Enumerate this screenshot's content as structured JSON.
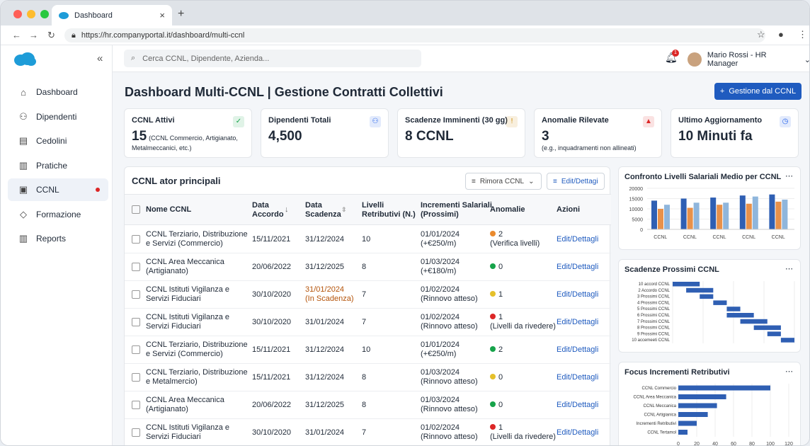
{
  "browser": {
    "tab_title": "Dashboard",
    "url": "https://hr.companyportal.it/dashboard/multi-ccnl"
  },
  "sidebar": {
    "items": [
      {
        "label": "Dashboard",
        "icon": "home-icon"
      },
      {
        "label": "Dipendenti",
        "icon": "people-icon"
      },
      {
        "label": "Cedolini",
        "icon": "document-icon"
      },
      {
        "label": "Pratiche",
        "icon": "file-icon"
      },
      {
        "label": "CCNL",
        "icon": "contract-icon"
      },
      {
        "label": "Formazione",
        "icon": "graduation-icon"
      },
      {
        "label": "Reports",
        "icon": "bar-chart-icon"
      }
    ]
  },
  "topbar": {
    "search_placeholder": "Cerca CCNL, Dipendente, Azienda...",
    "notifications": "1",
    "user": "Mario Rossi - HR Manager"
  },
  "page": {
    "title": "Dashboard Multi-CCNL | Gestione Contratti Collettivi",
    "action": "Gestione dal CCNL"
  },
  "kpis": [
    {
      "label": "CCNL Attivi",
      "value": "15",
      "sub": "(CCNL Commercio, Artigianato,",
      "sub2": "Metalmeccanici, etc.)",
      "icon": "check-icon",
      "color": "#16a34a"
    },
    {
      "label": "Dipendenti Totali",
      "value": "4,500",
      "sub": "",
      "sub2": "",
      "icon": "people-icon",
      "color": "#2563eb"
    },
    {
      "label": "Scadenze Imminenti (30 gg)",
      "value": "8 CCNL",
      "sub": "",
      "sub2": "",
      "icon": "exclamation-icon",
      "color": "#ca8a04"
    },
    {
      "label": "Anomalie Rilevate",
      "value": "3",
      "sub": "",
      "sub2": "(e.g., inquadramenti non allineati)",
      "icon": "warning-icon",
      "color": "#dc2626"
    },
    {
      "label": "Ultimo Aggiornamento",
      "value": "10 Minuti fa",
      "sub": "",
      "sub2": "",
      "icon": "clock-icon",
      "color": "#2563eb"
    }
  ],
  "table": {
    "title": "CCNL ator principali",
    "filter": "Rimora CCNL",
    "edit": "Edit/Dettagi",
    "headers": [
      "Nome CCNL",
      "Data Accordo",
      "Data Scadenza",
      "Livelli Retributivi (N.)",
      "Incrementi Salariali (Prossimi)",
      "Anomalie",
      "Azioni"
    ],
    "header_lines": [
      [
        "Nome CCNL"
      ],
      [
        "Data",
        "Accordo"
      ],
      [
        "Data",
        "Scadenza"
      ],
      [
        "Livelli",
        "Retributivi (N.)"
      ],
      [
        "Incrementi Salariali",
        "(Prossimi)"
      ],
      [
        "Anomalie"
      ],
      [
        "Azioni"
      ]
    ],
    "rows": [
      {
        "name": [
          "CCNL Terziario, Distribuzione",
          "e Servizi (Commercio)"
        ],
        "accordo": "15/11/2021",
        "scadenza": [
          "31/12/2024"
        ],
        "livelli": "10",
        "inc": [
          "01/01/2024",
          "(+€250/m)"
        ],
        "anom": [
          "2",
          "(Verifica livelli)"
        ],
        "dot": "#ea8a2e",
        "azioni": "Edit/Dettagli"
      },
      {
        "name": [
          "CCNL Area Meccanica",
          "(Artigianato)"
        ],
        "accordo": "20/06/2022",
        "scadenza": [
          "31/12/2025"
        ],
        "livelli": "8",
        "inc": [
          "01/03/2024",
          "(+€180/m)"
        ],
        "anom": [
          "0",
          ""
        ],
        "dot": "#16a34a",
        "azioni": "Edit/Dettagli"
      },
      {
        "name": [
          "CCNL Istituti Vigilanza e",
          "Servizi Fiduciari"
        ],
        "accordo": "30/10/2020",
        "scadenza": [
          "31/01/2024",
          "(In Scadenza)"
        ],
        "livelli": "7",
        "inc": [
          "01/02/2024",
          "(Rinnovo atteso)"
        ],
        "anom": [
          "1",
          ""
        ],
        "dot": "#e5c02a",
        "azioni": "Edit/Dettagli"
      },
      {
        "name": [
          "CCNL Istituti Vigilanza e",
          "Servizi Fiduciari"
        ],
        "accordo": "30/10/2020",
        "scadenza": [
          "31/01/2024"
        ],
        "livelli": "7",
        "inc": [
          "01/02/2024",
          "(Rinnovo atteso)"
        ],
        "anom": [
          "1",
          "(Livelli da rivedere)"
        ],
        "dot": "#dc2626",
        "azioni": "Edit/Dettagli"
      },
      {
        "name": [
          "CCNL Terziario, Distribuzione",
          "e Servizi (Commercio)"
        ],
        "accordo": "15/11/2021",
        "scadenza": [
          "31/12/2024"
        ],
        "livelli": "10",
        "inc": [
          "01/01/2024",
          "(+€250/m)"
        ],
        "anom": [
          "2",
          ""
        ],
        "dot": "#16a34a",
        "azioni": "Edit/Dettagli"
      },
      {
        "name": [
          "CCNL Terziario, Distribuzione",
          "e Metalmercio)"
        ],
        "accordo": "15/11/2021",
        "scadenza": [
          "31/12/2024"
        ],
        "livelli": "8",
        "inc": [
          "01/03/2024",
          "(Rinnovo atteso)"
        ],
        "anom": [
          "0",
          ""
        ],
        "dot": "#e5c02a",
        "azioni": "Edit/Dettagli"
      },
      {
        "name": [
          "CCNL Area Meccanica",
          "(Artigianato)"
        ],
        "accordo": "20/06/2022",
        "scadenza": [
          "31/12/2025"
        ],
        "livelli": "8",
        "inc": [
          "01/03/2024",
          "(Rinnovo atteso)"
        ],
        "anom": [
          "0",
          ""
        ],
        "dot": "#16a34a",
        "azioni": "Edit/Dettagli"
      },
      {
        "name": [
          "CCNL Istituti Vigilanza e",
          "Servizi Fiduciari"
        ],
        "accordo": "30/10/2020",
        "scadenza": [
          "31/01/2024"
        ],
        "livelli": "7",
        "inc": [
          "01/02/2024",
          "(Rinnovo atteso)"
        ],
        "anom": [
          "1",
          "(Livelli da rivedere)"
        ],
        "dot": "#dc2626",
        "azioni": "Edit/Dettagli"
      }
    ]
  },
  "chart_data": [
    {
      "type": "bar",
      "title": "Confronto Livelli Salariali Medio per CCNL",
      "categories": [
        "CCNL",
        "CCNL",
        "CCNL",
        "CCNL",
        "CCNL"
      ],
      "ylim": [
        0,
        20000
      ],
      "yticks": [
        "20000",
        "15000",
        "10000",
        "5000",
        "0"
      ],
      "series": [
        {
          "values": [
            14000,
            15000,
            15500,
            16500,
            17000
          ],
          "color": "#2f5fb3"
        },
        {
          "values": [
            10000,
            10500,
            12000,
            12500,
            13500
          ],
          "color": "#e8914a"
        },
        {
          "values": [
            12000,
            13000,
            13000,
            16000,
            14500
          ],
          "color": "#8fb6dc"
        }
      ]
    },
    {
      "type": "bar",
      "title": "Scadenze Prossimi CCNL",
      "categories": [
        "10 accord CCNL",
        "2 Accordo CCNL",
        "3 Prossimi CCNL",
        "4 Prossimi CCNL",
        "5 Prossimi CCNL",
        "6 Prossimi CCNL",
        "7 Prossimi CCNL",
        "8 Prossimi CCNL",
        "9 Prossimi CCNL",
        "10 accemeeti CCNL"
      ],
      "ranges": [
        [
          0,
          20
        ],
        [
          10,
          30
        ],
        [
          20,
          30
        ],
        [
          30,
          40
        ],
        [
          40,
          50
        ],
        [
          40,
          60
        ],
        [
          50,
          70
        ],
        [
          60,
          80
        ],
        [
          70,
          80
        ],
        [
          80,
          90
        ]
      ],
      "color": "#2f5fb3"
    },
    {
      "type": "bar",
      "title": "Focus Incrementi Retributivi",
      "categories": [
        "CCNL Commercio",
        "CCNL Area Meccanica",
        "CCNL Meccanica",
        "CCNL Artigianica",
        "Incrementi Retributivi",
        "CCNL Tertamol"
      ],
      "values": [
        100,
        52,
        42,
        32,
        20,
        10
      ],
      "xlim": [
        0,
        120
      ],
      "xticks": [
        "0",
        "20",
        "40",
        "60",
        "80",
        "100",
        "120"
      ],
      "color": "#2f5fb3"
    }
  ]
}
